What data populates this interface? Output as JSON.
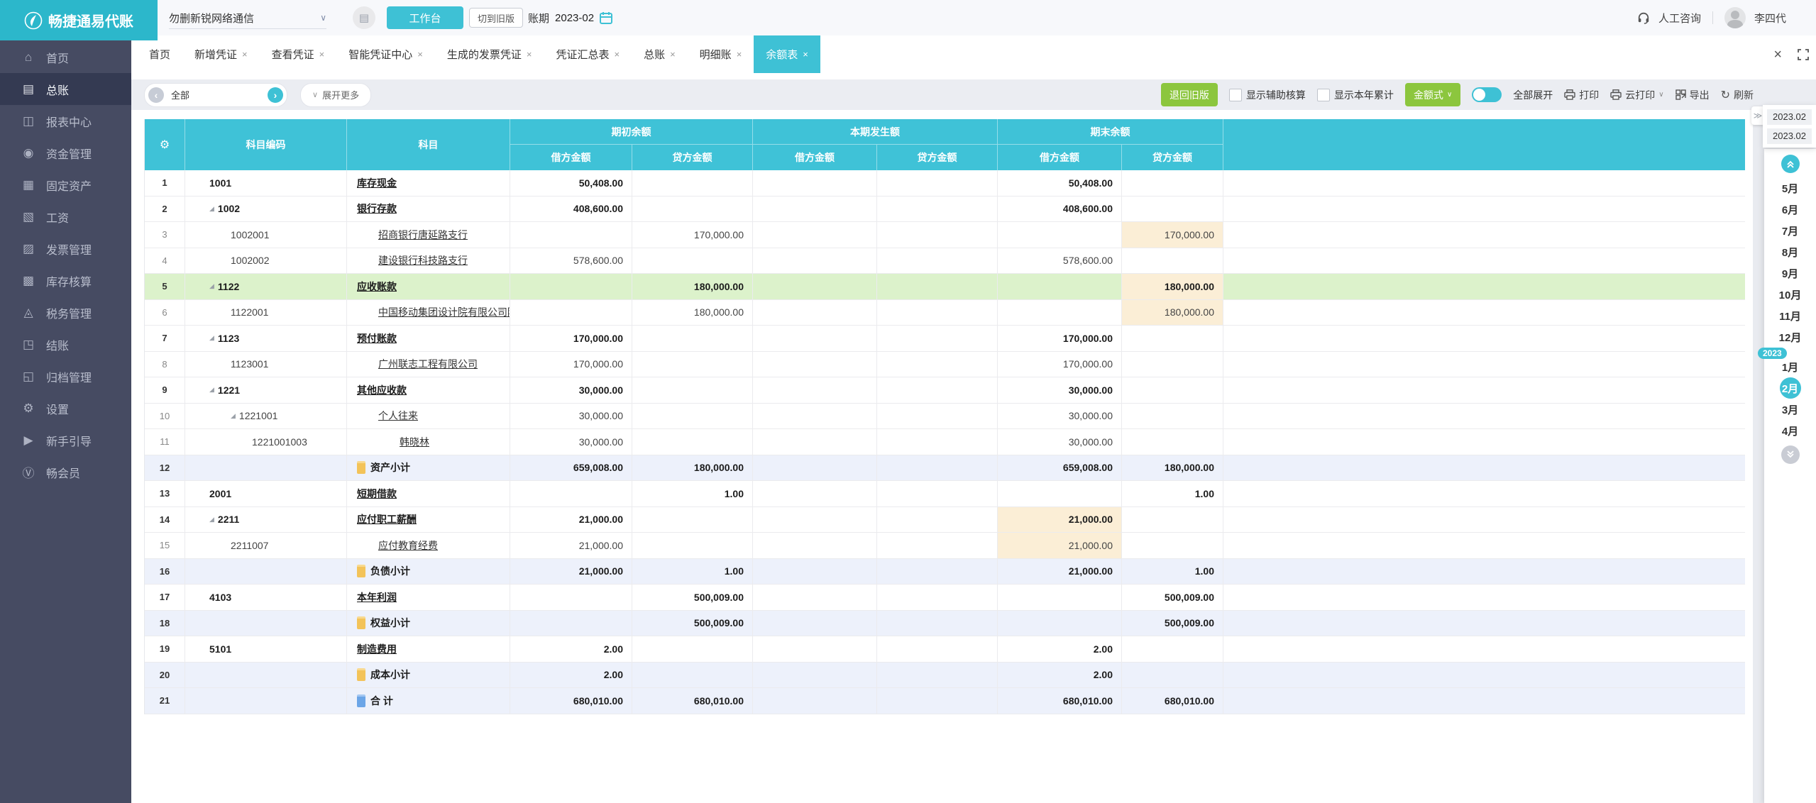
{
  "topbar": {
    "logo": "畅捷通易代账",
    "company": "勿删新锐网络通信",
    "workbench": "工作台",
    "switch_old": "切到旧版",
    "period_label": "账期",
    "period_value": "2023-02",
    "support": "人工咨询",
    "user": "李四代"
  },
  "colors": {
    "accent_cyan": "#3ec1d5",
    "logo_cyan": "#2cb7cb",
    "button_green": "#8cc63e",
    "sidebar_bg": "#464b62",
    "highlight_orange": "#fbeed6",
    "selected_row_green": "#dcf2cb",
    "subtotal_row_blue": "#edf1fb"
  },
  "sidebar": {
    "items": [
      {
        "label": "首页",
        "icon": "home-icon",
        "active": false
      },
      {
        "label": "总账",
        "icon": "ledger-icon",
        "active": true
      },
      {
        "label": "报表中心",
        "icon": "report-icon",
        "active": false
      },
      {
        "label": "资金管理",
        "icon": "funds-icon",
        "active": false
      },
      {
        "label": "固定资产",
        "icon": "fixed-assets-icon",
        "active": false
      },
      {
        "label": "工资",
        "icon": "salary-icon",
        "active": false
      },
      {
        "label": "发票管理",
        "icon": "invoice-icon",
        "active": false
      },
      {
        "label": "库存核算",
        "icon": "inventory-icon",
        "active": false
      },
      {
        "label": "税务管理",
        "icon": "tax-icon",
        "active": false
      },
      {
        "label": "结账",
        "icon": "closing-icon",
        "active": false
      },
      {
        "label": "归档管理",
        "icon": "archive-icon",
        "active": false
      },
      {
        "label": "设置",
        "icon": "settings-icon",
        "active": false
      },
      {
        "label": "新手引导",
        "icon": "guide-icon",
        "active": false
      },
      {
        "label": "畅会员",
        "icon": "member-icon",
        "active": false
      }
    ]
  },
  "tabs": [
    {
      "label": "首页",
      "closable": false,
      "active": false
    },
    {
      "label": "新增凭证",
      "closable": true,
      "active": false
    },
    {
      "label": "查看凭证",
      "closable": true,
      "active": false
    },
    {
      "label": "智能凭证中心",
      "closable": true,
      "active": false
    },
    {
      "label": "生成的发票凭证",
      "closable": true,
      "active": false
    },
    {
      "label": "凭证汇总表",
      "closable": true,
      "active": false
    },
    {
      "label": "总账",
      "closable": true,
      "active": false
    },
    {
      "label": "明细账",
      "closable": true,
      "active": false
    },
    {
      "label": "余额表",
      "closable": true,
      "active": true
    }
  ],
  "toolbar": {
    "subject_filter": "全部",
    "expand_more": "展开更多",
    "back_old": "退回旧版",
    "show_aux": "显示辅助核算",
    "show_ytd": "显示本年累计",
    "amount_style": "金额式",
    "expand_all": "全部展开",
    "print": "打印",
    "cloud_print": "云打印",
    "export": "导出",
    "refresh": "刷新"
  },
  "table": {
    "col_code": "科目编码",
    "col_subject": "科目",
    "group_headers": [
      "期初余额",
      "本期发生额",
      "期末余额"
    ],
    "col_debit": "借方金额",
    "col_credit": "贷方金额",
    "rows": [
      {
        "n": "1",
        "code": "1001",
        "tri": false,
        "indent": 0,
        "name": "库存现金",
        "em": true,
        "od": "50,408.00",
        "oc": "",
        "cd": "",
        "cc": "",
        "ed": "50,408.00",
        "ec": ""
      },
      {
        "n": "2",
        "code": "1002",
        "tri": true,
        "indent": 0,
        "name": "银行存款",
        "em": true,
        "od": "408,600.00",
        "oc": "",
        "cd": "",
        "cc": "",
        "ed": "408,600.00",
        "ec": ""
      },
      {
        "n": "3",
        "code": "1002001",
        "tri": false,
        "indent": 1,
        "name": "招商银行唐延路支行",
        "em": false,
        "od": "",
        "oc": "170,000.00",
        "cd": "",
        "cc": "",
        "ed": "",
        "ec": "170,000.00",
        "hl_ec": true
      },
      {
        "n": "4",
        "code": "1002002",
        "tri": false,
        "indent": 1,
        "name": "建设银行科技路支行",
        "em": false,
        "od": "578,600.00",
        "oc": "",
        "cd": "",
        "cc": "",
        "ed": "578,600.00",
        "ec": ""
      },
      {
        "n": "5",
        "code": "1122",
        "tri": true,
        "indent": 0,
        "name": "应收账款",
        "em": true,
        "od": "",
        "oc": "180,000.00",
        "cd": "",
        "cc": "",
        "ed": "",
        "ec": "180,000.00",
        "hl_ec": true,
        "row_hl": "green"
      },
      {
        "n": "6",
        "code": "1122001",
        "tri": false,
        "indent": 1,
        "name": "中国移动集团设计院有限公司陕",
        "em": false,
        "od": "",
        "oc": "180,000.00",
        "cd": "",
        "cc": "",
        "ed": "",
        "ec": "180,000.00",
        "hl_ec": true
      },
      {
        "n": "7",
        "code": "1123",
        "tri": true,
        "indent": 0,
        "name": "预付账款",
        "em": true,
        "od": "170,000.00",
        "oc": "",
        "cd": "",
        "cc": "",
        "ed": "170,000.00",
        "ec": ""
      },
      {
        "n": "8",
        "code": "1123001",
        "tri": false,
        "indent": 1,
        "name": "广州联志工程有限公司",
        "em": false,
        "od": "170,000.00",
        "oc": "",
        "cd": "",
        "cc": "",
        "ed": "170,000.00",
        "ec": ""
      },
      {
        "n": "9",
        "code": "1221",
        "tri": true,
        "indent": 0,
        "name": "其他应收款",
        "em": true,
        "od": "30,000.00",
        "oc": "",
        "cd": "",
        "cc": "",
        "ed": "30,000.00",
        "ec": ""
      },
      {
        "n": "10",
        "code": "1221001",
        "tri": true,
        "indent": 1,
        "name": "个人往来",
        "em": false,
        "od": "30,000.00",
        "oc": "",
        "cd": "",
        "cc": "",
        "ed": "30,000.00",
        "ec": ""
      },
      {
        "n": "11",
        "code": "1221001003",
        "tri": false,
        "indent": 2,
        "name": "韩晓林",
        "em": false,
        "od": "30,000.00",
        "oc": "",
        "cd": "",
        "cc": "",
        "ed": "30,000.00",
        "ec": ""
      },
      {
        "n": "12",
        "type": "subtotal",
        "icon": "yellow-sheet-icon",
        "name": "资产小计",
        "em": true,
        "od": "659,008.00",
        "oc": "180,000.00",
        "cd": "",
        "cc": "",
        "ed": "659,008.00",
        "ec": "180,000.00"
      },
      {
        "n": "13",
        "code": "2001",
        "tri": false,
        "indent": 0,
        "name": "短期借款",
        "em": true,
        "od": "",
        "oc": "1.00",
        "cd": "",
        "cc": "",
        "ed": "",
        "ec": "1.00"
      },
      {
        "n": "14",
        "code": "2211",
        "tri": true,
        "indent": 0,
        "name": "应付职工薪酬",
        "em": true,
        "od": "21,000.00",
        "oc": "",
        "cd": "",
        "cc": "",
        "ed": "21,000.00",
        "ec": "",
        "hl_ed": true
      },
      {
        "n": "15",
        "code": "2211007",
        "tri": false,
        "indent": 1,
        "name": "应付教育经费",
        "em": false,
        "od": "21,000.00",
        "oc": "",
        "cd": "",
        "cc": "",
        "ed": "21,000.00",
        "ec": "",
        "hl_ed": true
      },
      {
        "n": "16",
        "type": "subtotal",
        "icon": "yellow-sheet-icon",
        "name": "负债小计",
        "em": true,
        "od": "21,000.00",
        "oc": "1.00",
        "cd": "",
        "cc": "",
        "ed": "21,000.00",
        "ec": "1.00"
      },
      {
        "n": "17",
        "code": "4103",
        "tri": false,
        "indent": 0,
        "name": "本年利润",
        "em": true,
        "od": "",
        "oc": "500,009.00",
        "cd": "",
        "cc": "",
        "ed": "",
        "ec": "500,009.00"
      },
      {
        "n": "18",
        "type": "subtotal",
        "icon": "yellow-sheet-icon",
        "name": "权益小计",
        "em": true,
        "od": "",
        "oc": "500,009.00",
        "cd": "",
        "cc": "",
        "ed": "",
        "ec": "500,009.00"
      },
      {
        "n": "19",
        "code": "5101",
        "tri": false,
        "indent": 0,
        "name": "制造费用",
        "em": true,
        "od": "2.00",
        "oc": "",
        "cd": "",
        "cc": "",
        "ed": "2.00",
        "ec": ""
      },
      {
        "n": "20",
        "type": "subtotal",
        "icon": "yellow-sheet-icon",
        "name": "成本小计",
        "em": true,
        "od": "2.00",
        "oc": "",
        "cd": "",
        "cc": "",
        "ed": "2.00",
        "ec": ""
      },
      {
        "n": "21",
        "type": "total",
        "icon": "blue-sheet-icon",
        "name": "合 计",
        "em": true,
        "od": "680,010.00",
        "oc": "680,010.00",
        "cd": "",
        "cc": "",
        "ed": "680,010.00",
        "ec": "680,010.00"
      }
    ]
  },
  "right_panel": {
    "period_from": "2023.02",
    "period_to": "2023.02",
    "year_badge": "2023",
    "months": [
      {
        "label": "5月",
        "active": false
      },
      {
        "label": "6月",
        "active": false
      },
      {
        "label": "7月",
        "active": false
      },
      {
        "label": "8月",
        "active": false
      },
      {
        "label": "9月",
        "active": false
      },
      {
        "label": "10月",
        "active": false
      },
      {
        "label": "11月",
        "active": false
      },
      {
        "label": "12月",
        "active": false
      },
      {
        "label": "1月",
        "active": false,
        "first_of_year": true
      },
      {
        "label": "2月",
        "active": true
      },
      {
        "label": "3月",
        "active": false
      },
      {
        "label": "4月",
        "active": false
      }
    ]
  }
}
